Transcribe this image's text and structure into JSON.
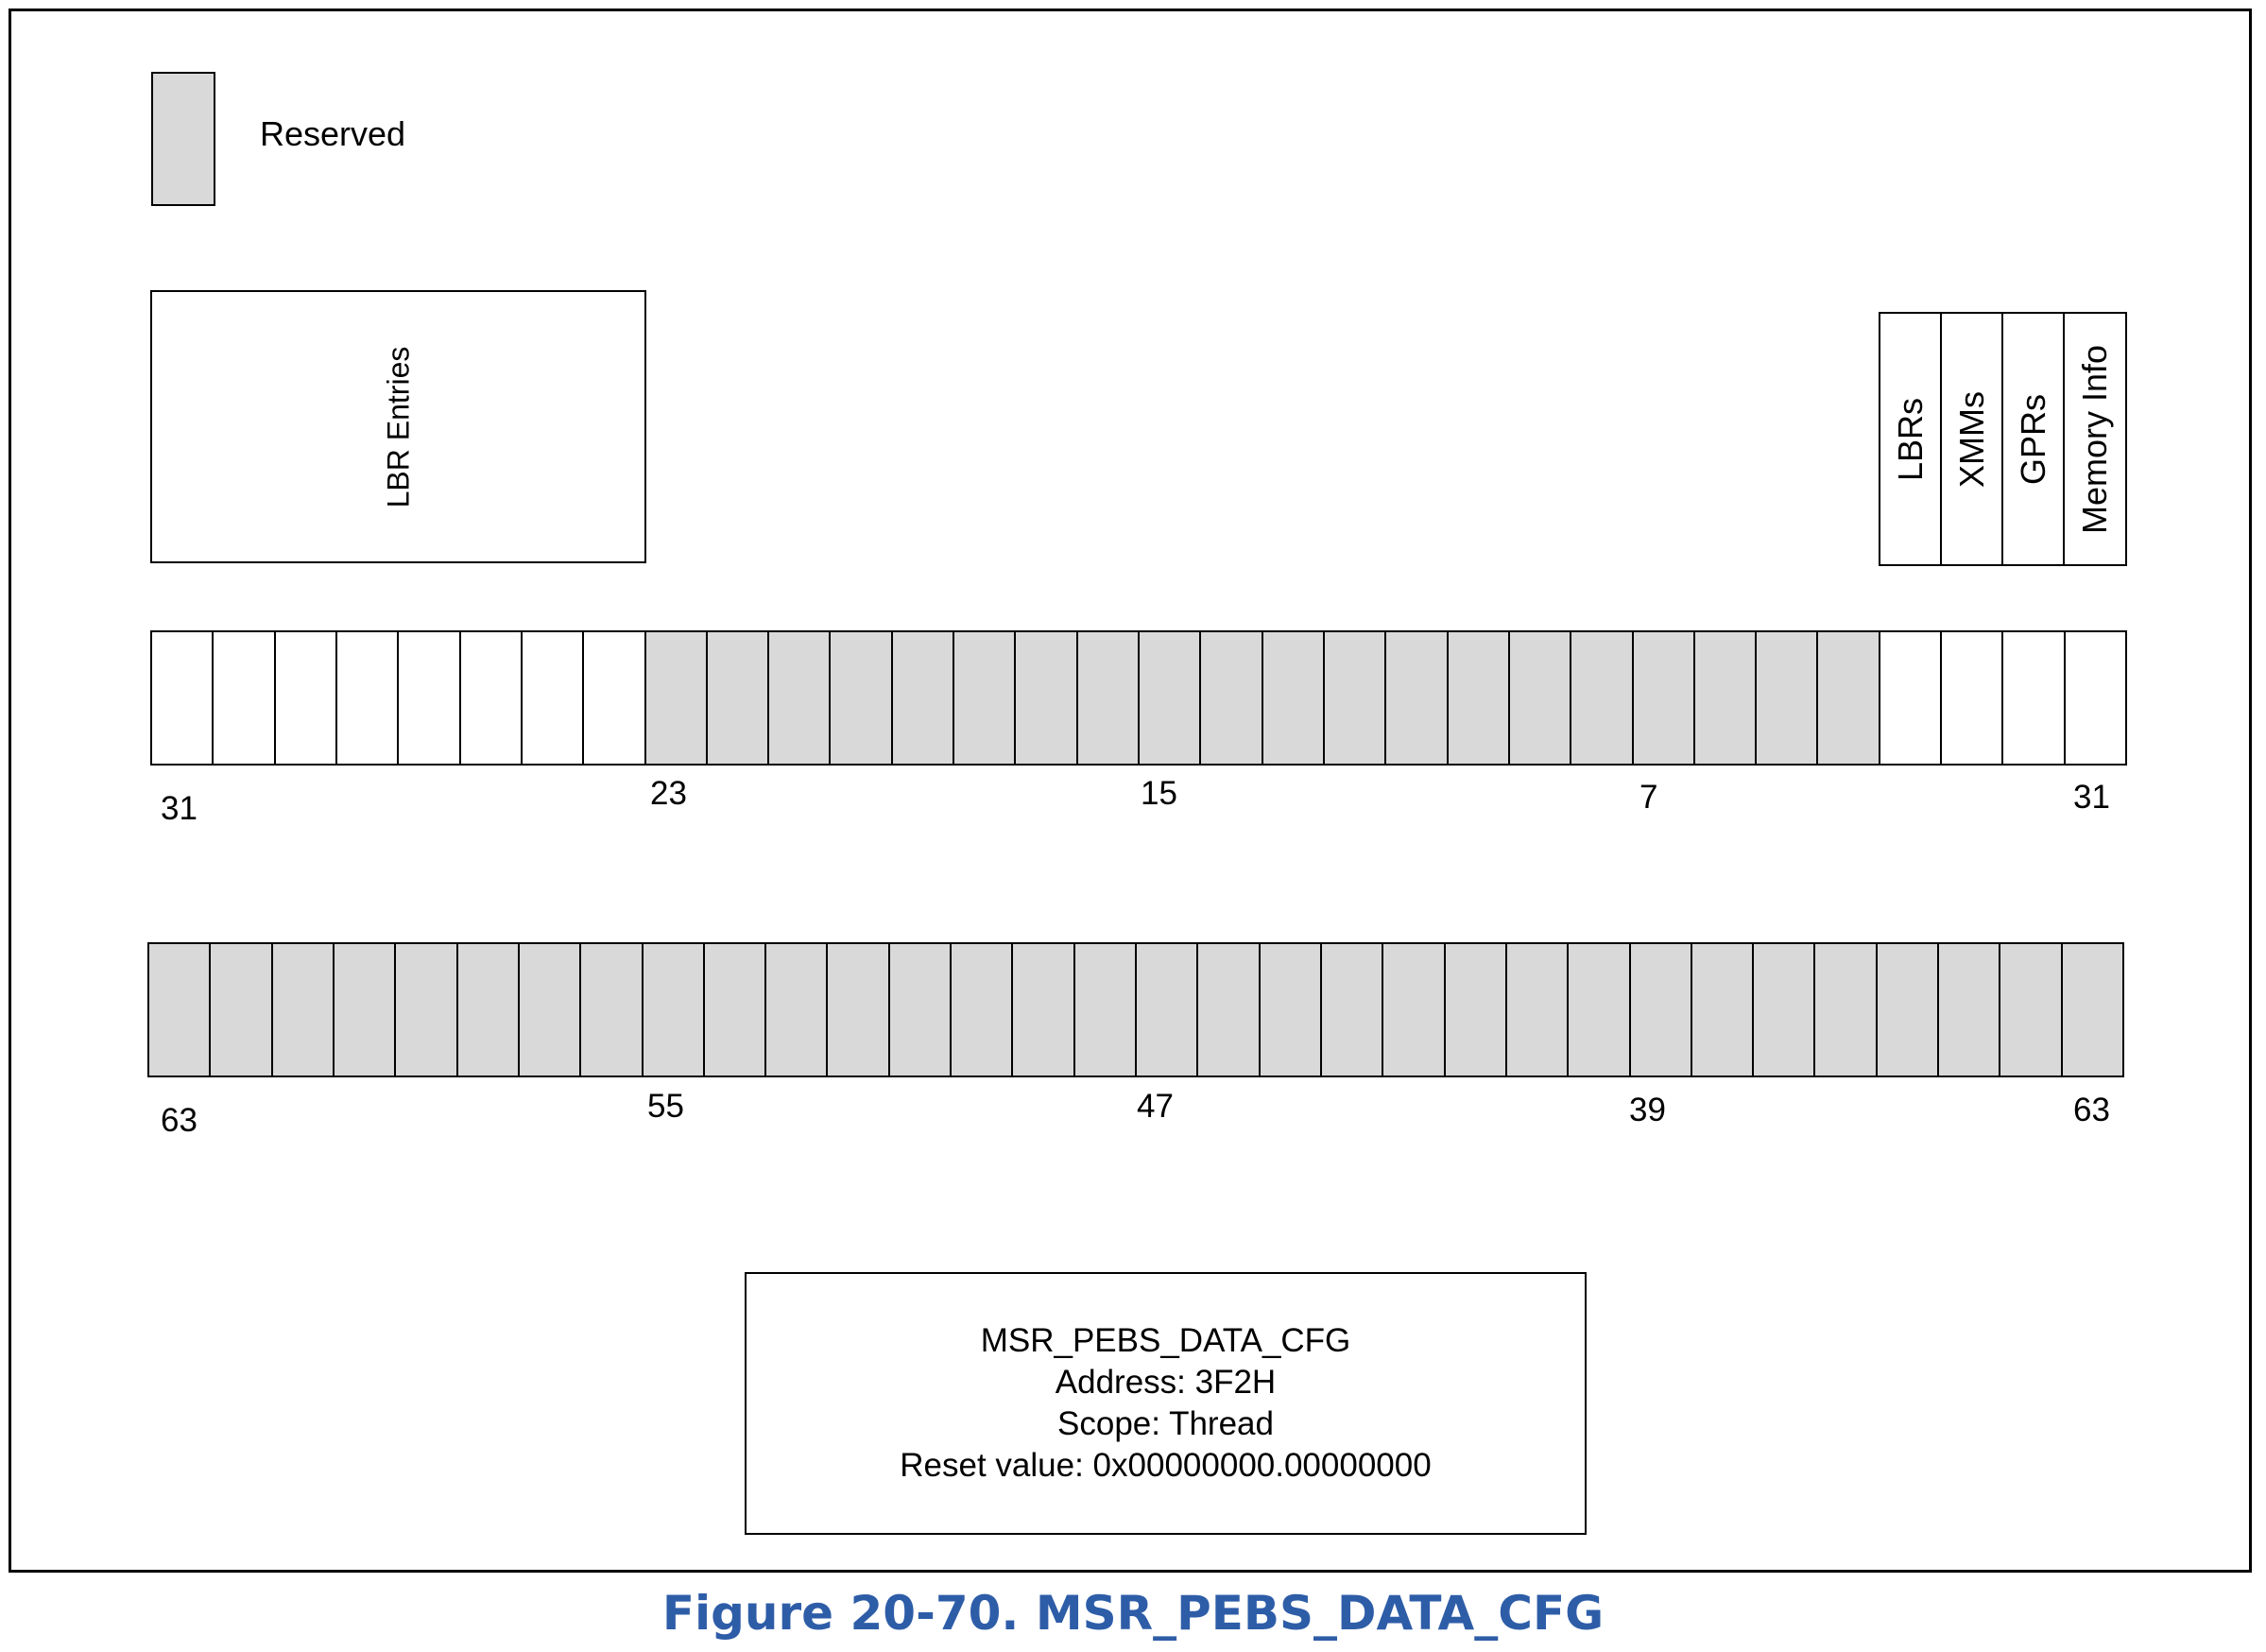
{
  "legend": {
    "label": "Reserved",
    "color": "#d9d9d9"
  },
  "fields_upper": {
    "lbr_entries": "LBR Entries",
    "lbrs": "LBRs",
    "xmms": "XMMs",
    "gprs": "GPRs",
    "memory_info": "Memory Info"
  },
  "row_low": {
    "reserved": [
      false,
      false,
      false,
      false,
      false,
      false,
      false,
      false,
      true,
      true,
      true,
      true,
      true,
      true,
      true,
      true,
      true,
      true,
      true,
      true,
      true,
      true,
      true,
      true,
      true,
      true,
      true,
      true,
      false,
      false,
      false,
      false
    ],
    "labels": {
      "l0": "31",
      "l1": "23",
      "l2": "15",
      "l3": "7",
      "l4": "31"
    }
  },
  "row_high": {
    "reserved": [
      true,
      true,
      true,
      true,
      true,
      true,
      true,
      true,
      true,
      true,
      true,
      true,
      true,
      true,
      true,
      true,
      true,
      true,
      true,
      true,
      true,
      true,
      true,
      true,
      true,
      true,
      true,
      true,
      true,
      true,
      true,
      true
    ],
    "labels": {
      "l0": "63",
      "l1": "55",
      "l2": "47",
      "l3": "39",
      "l4": "63"
    }
  },
  "info": {
    "name": "MSR_PEBS_DATA_CFG",
    "address": "Address: 3F2H",
    "scope": "Scope: Thread",
    "reset": "Reset value: 0x00000000.00000000"
  },
  "caption": "Figure 20-70.  MSR_PEBS_DATA_CFG",
  "colors": {
    "reserved": "#d9d9d9",
    "caption": "#2e5da8"
  }
}
